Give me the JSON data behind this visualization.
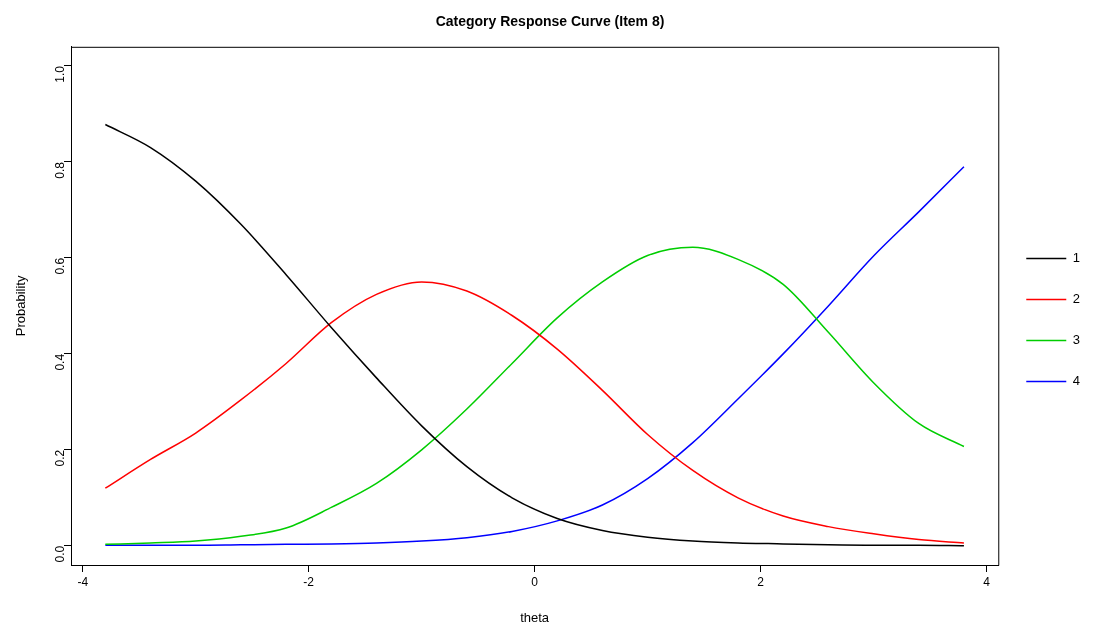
{
  "chart_data": {
    "type": "line",
    "title": "Category Response Curve (Item 8)",
    "xlabel": "theta",
    "ylabel": "Probability",
    "x": [
      -3.8,
      -3.4,
      -3.0,
      -2.6,
      -2.2,
      -1.8,
      -1.4,
      -1.0,
      -0.6,
      -0.2,
      0.2,
      0.6,
      1.0,
      1.4,
      1.8,
      2.2,
      2.6,
      3.0,
      3.4,
      3.8
    ],
    "series": [
      {
        "name": "1",
        "color": "#000000",
        "values": [
          0.878,
          0.83,
          0.76,
          0.67,
          0.565,
          0.455,
          0.35,
          0.25,
          0.165,
          0.1,
          0.057,
          0.032,
          0.018,
          0.01,
          0.006,
          0.004,
          0.002,
          0.001,
          0.001,
          0.0
        ]
      },
      {
        "name": "2",
        "color": "#ff0000",
        "values": [
          0.12,
          0.18,
          0.235,
          0.304,
          0.38,
          0.465,
          0.524,
          0.55,
          0.531,
          0.48,
          0.41,
          0.324,
          0.232,
          0.157,
          0.1,
          0.062,
          0.04,
          0.025,
          0.013,
          0.006
        ]
      },
      {
        "name": "3",
        "color": "#00cd00",
        "values": [
          0.003,
          0.006,
          0.01,
          0.02,
          0.037,
          0.08,
          0.13,
          0.2,
          0.285,
          0.38,
          0.475,
          0.55,
          0.605,
          0.622,
          0.597,
          0.545,
          0.445,
          0.34,
          0.255,
          0.207
        ]
      },
      {
        "name": "4",
        "color": "#0000ff",
        "values": [
          0.001,
          0.001,
          0.001,
          0.002,
          0.003,
          0.004,
          0.006,
          0.01,
          0.017,
          0.03,
          0.052,
          0.085,
          0.14,
          0.215,
          0.306,
          0.4,
          0.5,
          0.604,
          0.696,
          0.79
        ]
      }
    ],
    "xlim": [
      -4.104,
      4.104
    ],
    "xticks": [
      -4,
      -2,
      0,
      2,
      4
    ],
    "ylim": [
      -0.04,
      1.04
    ],
    "yticks": [
      {
        "value": 0,
        "label": "0.0"
      },
      0.2,
      0.4,
      0.6,
      0.8,
      {
        "value": 1,
        "label": "1.0"
      }
    ],
    "grid": false,
    "legend": "right",
    "marker": "none",
    "line_style": "solid"
  }
}
